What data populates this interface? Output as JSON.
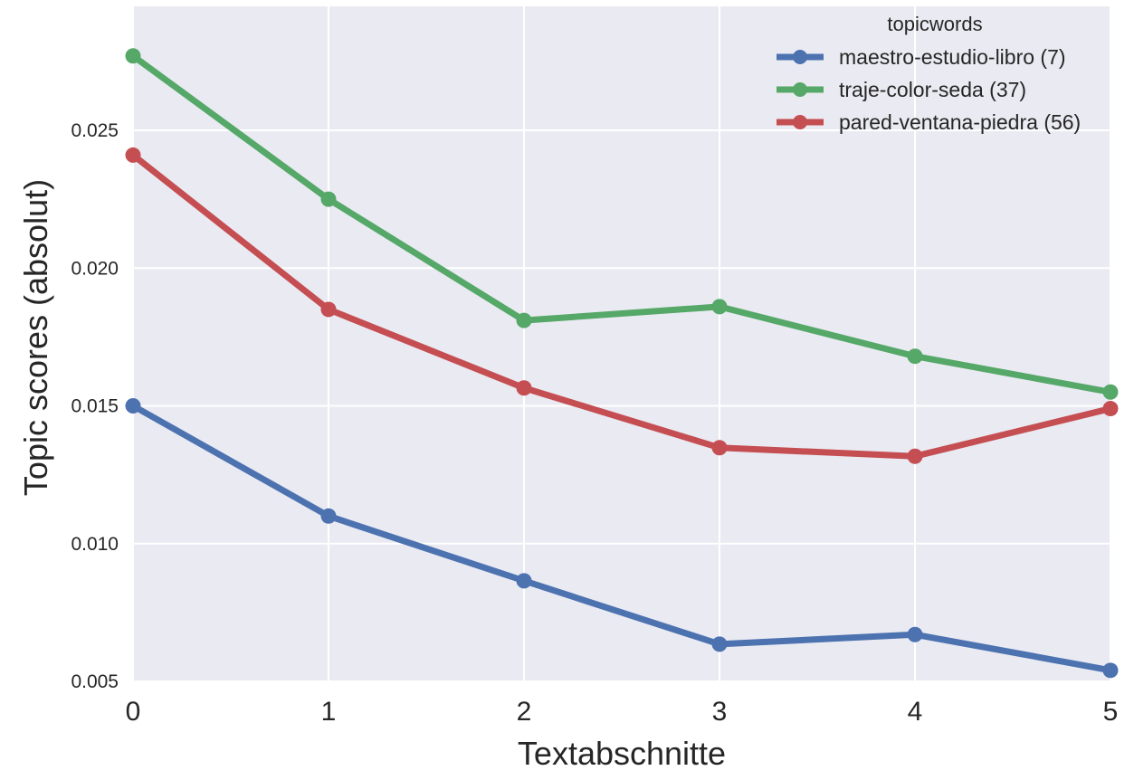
{
  "chart_data": {
    "type": "line",
    "xlabel": "Textabschnitte",
    "ylabel": "Topic scores (absolut)",
    "x": [
      0,
      1,
      2,
      3,
      4,
      5
    ],
    "xlim": [
      0,
      5
    ],
    "ylim": [
      0.005,
      0.0295
    ],
    "yticks": [
      "0.005",
      "0.010",
      "0.015",
      "0.020",
      "0.025"
    ],
    "ytick_values": [
      0.005,
      0.01,
      0.015,
      0.02,
      0.025
    ],
    "xticks": [
      "0",
      "1",
      "2",
      "3",
      "4",
      "5"
    ],
    "grid": true,
    "legend": {
      "title": "topicwords",
      "placement": "top-right"
    },
    "series": [
      {
        "name": "maestro-estudio-libro (7)",
        "color": "#4c72b0",
        "values": [
          0.015,
          0.011,
          0.00865,
          0.00635,
          0.0067,
          0.0054
        ]
      },
      {
        "name": "traje-color-seda (37)",
        "color": "#55a868",
        "values": [
          0.0277,
          0.0225,
          0.0181,
          0.0186,
          0.0168,
          0.0155
        ]
      },
      {
        "name": "pared-ventana-piedra (56)",
        "color": "#c44e52",
        "values": [
          0.0241,
          0.0185,
          0.01565,
          0.01348,
          0.01317,
          0.0149
        ]
      }
    ]
  }
}
